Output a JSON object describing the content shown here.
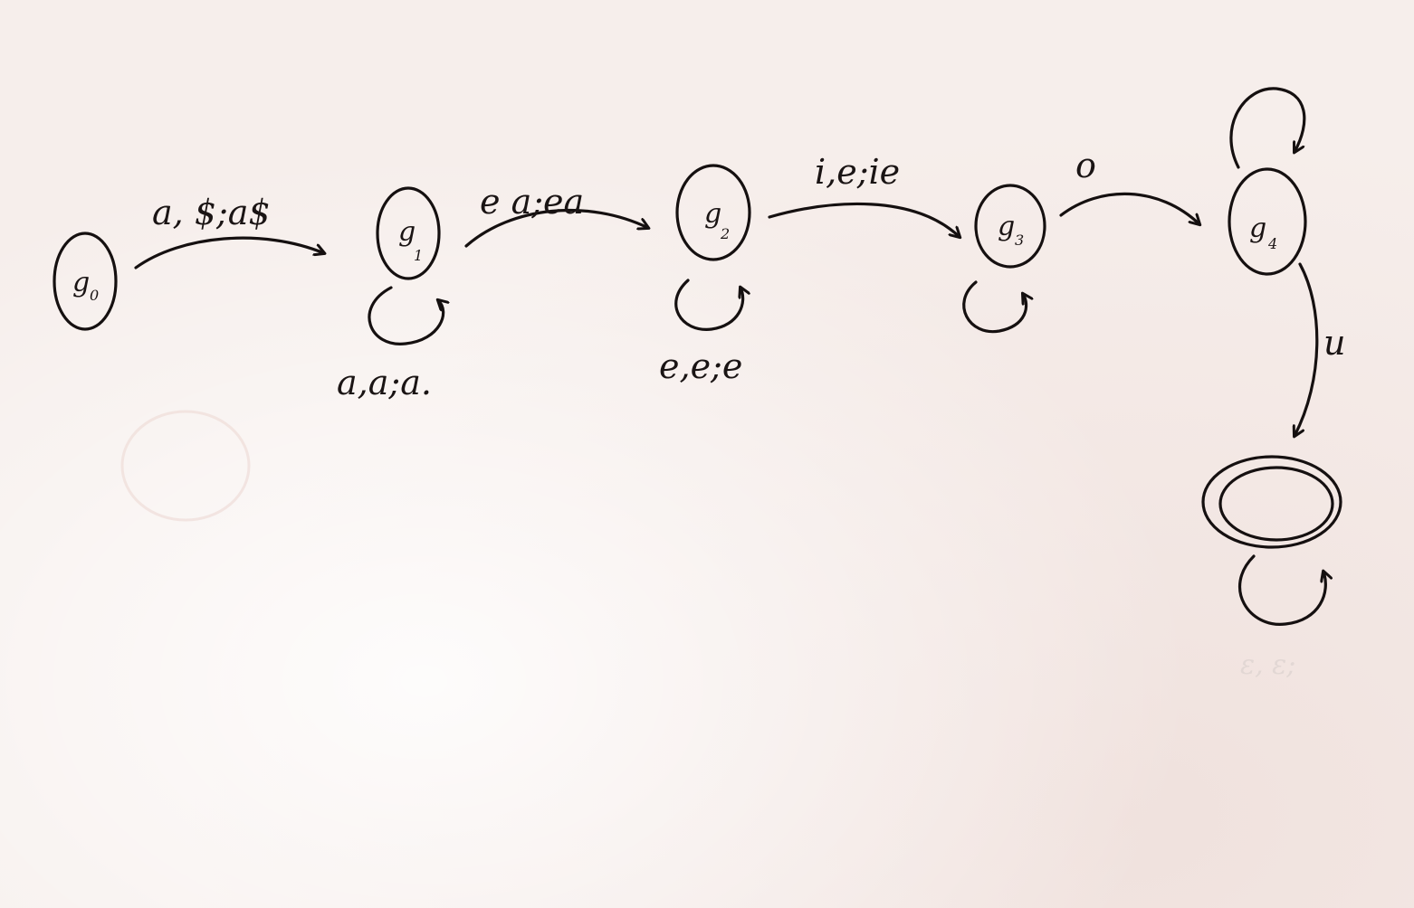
{
  "diagram": {
    "states": [
      {
        "id": "q0",
        "label": "g",
        "sub": "0",
        "accepting": false
      },
      {
        "id": "q1",
        "label": "g",
        "sub": "1",
        "accepting": false
      },
      {
        "id": "q2",
        "label": "g",
        "sub": "2",
        "accepting": false
      },
      {
        "id": "q3",
        "label": "g",
        "sub": "3",
        "accepting": false
      },
      {
        "id": "q4",
        "label": "g",
        "sub": "4",
        "accepting": false
      },
      {
        "id": "qf",
        "label": "",
        "sub": "",
        "accepting": true
      }
    ],
    "transitions": [
      {
        "from": "q0",
        "to": "q1",
        "label": "a, $;a$"
      },
      {
        "from": "q1",
        "to": "q1",
        "label": "a,a;a."
      },
      {
        "from": "q1",
        "to": "q2",
        "label": "e a;ea"
      },
      {
        "from": "q2",
        "to": "q2",
        "label": "e,e;e"
      },
      {
        "from": "q2",
        "to": "q3",
        "label": "i,e;ie"
      },
      {
        "from": "q3",
        "to": "q3",
        "label": ""
      },
      {
        "from": "q3",
        "to": "q4",
        "label": "o"
      },
      {
        "from": "q4",
        "to": "q4",
        "label": ""
      },
      {
        "from": "q4",
        "to": "qf",
        "label": "u"
      },
      {
        "from": "qf",
        "to": "qf",
        "label": "ε,ε;ε"
      }
    ]
  },
  "colors": {
    "ink": "#151010",
    "paper": "#f6eeeb"
  }
}
